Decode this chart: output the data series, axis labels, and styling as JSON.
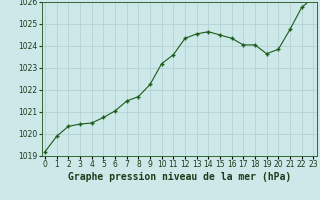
{
  "hours": [
    0,
    1,
    2,
    3,
    4,
    5,
    6,
    7,
    8,
    9,
    10,
    11,
    12,
    13,
    14,
    15,
    16,
    17,
    18,
    19,
    20,
    21,
    22,
    23
  ],
  "pressure": [
    1019.2,
    1019.9,
    1020.35,
    1020.45,
    1020.5,
    1020.75,
    1021.05,
    1021.5,
    1021.7,
    1022.25,
    1023.2,
    1023.6,
    1024.35,
    1024.55,
    1024.65,
    1024.5,
    1024.35,
    1024.05,
    1024.05,
    1023.65,
    1023.85,
    1024.75,
    1025.75,
    1026.2
  ],
  "ylim": [
    1019,
    1026
  ],
  "yticks": [
    1019,
    1020,
    1021,
    1022,
    1023,
    1024,
    1025,
    1026
  ],
  "xticks": [
    0,
    1,
    2,
    3,
    4,
    5,
    6,
    7,
    8,
    9,
    10,
    11,
    12,
    13,
    14,
    15,
    16,
    17,
    18,
    19,
    20,
    21,
    22,
    23
  ],
  "line_color": "#1a5c1a",
  "marker_color": "#1a5c1a",
  "bg_color": "#cde8e8",
  "grid_color_major": "#b0cccc",
  "grid_color_minor": "#c8e0e0",
  "xlabel": "Graphe pression niveau de la mer (hPa)",
  "xlabel_fontsize": 7.0,
  "tick_fontsize": 5.5
}
